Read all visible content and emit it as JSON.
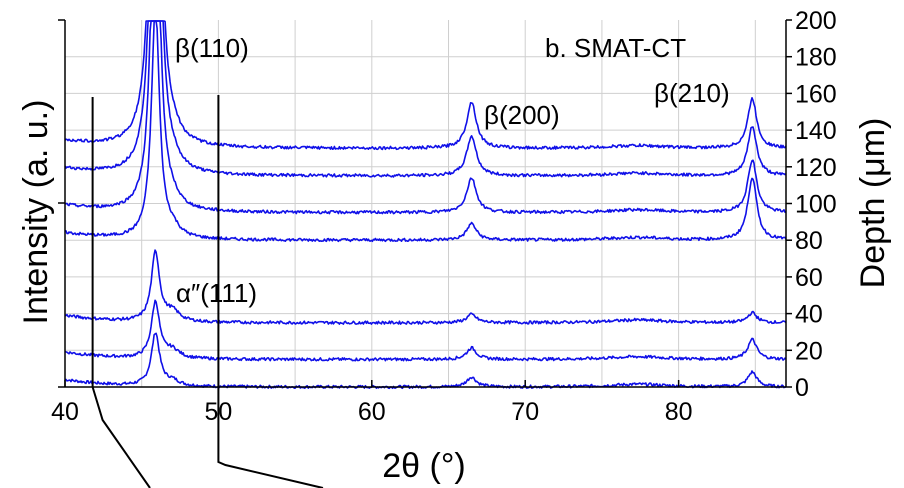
{
  "chart_data": {
    "type": "line",
    "title": "b. SMAT-CT",
    "xlabel": "2θ (°)",
    "ylabel_left": "Intensity (a. u.)",
    "ylabel_right": "Depth (μm)",
    "xlim": [
      40,
      87
    ],
    "ylim_right": [
      0,
      200
    ],
    "x_ticks": [
      "40",
      "50",
      "60",
      "70",
      "80"
    ],
    "y_right_ticks": [
      "0",
      "20",
      "40",
      "60",
      "80",
      "100",
      "120",
      "140",
      "160",
      "180",
      "200"
    ],
    "grid": true,
    "series_offsets_depth": [
      0,
      15,
      35,
      80,
      95,
      115,
      130
    ],
    "peaks": [
      {
        "x": 45.9,
        "label": "β(110)"
      },
      {
        "x": 47.0,
        "label": "α″(111)"
      },
      {
        "x": 66.5,
        "label": "β(200)"
      },
      {
        "x": 84.8,
        "label": "β(210)"
      }
    ],
    "annotations": [
      "β(110)",
      "β(200)",
      "β(210)",
      "α″(111)"
    ],
    "marker_lines_x": [
      41.8,
      50.0
    ]
  }
}
